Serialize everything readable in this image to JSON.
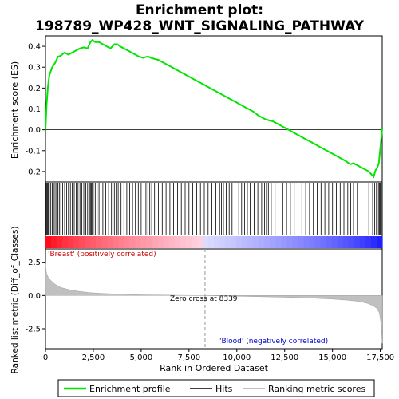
{
  "chart_data": {
    "type": "line",
    "title_line1": "Enrichment plot:",
    "title_line2": "198789_WP428_WNT_SIGNALING_PATHWAY",
    "top_panel": {
      "ylabel": "Enrichment score (ES)",
      "ylim": [
        -0.25,
        0.45
      ],
      "yticks": [
        -0.2,
        -0.1,
        0.0,
        0.1,
        0.2,
        0.3,
        0.4
      ],
      "ytick_labels": [
        "-0.2",
        "-0.1",
        "0.0",
        "0.1",
        "0.2",
        "0.3",
        "0.4"
      ],
      "line_color": "#00e600",
      "es_profile": {
        "x": [
          0,
          60,
          120,
          200,
          350,
          500,
          650,
          800,
          1000,
          1200,
          1400,
          1600,
          1800,
          2000,
          2200,
          2350,
          2450,
          2600,
          2800,
          3000,
          3200,
          3400,
          3600,
          3750,
          3900,
          4100,
          4300,
          4500,
          4700,
          4900,
          5100,
          5300,
          5400,
          5500,
          5700,
          5900,
          6100,
          6300,
          6500,
          6700,
          6900,
          7100,
          7300,
          7500,
          7700,
          7900,
          8100,
          8300,
          8500,
          8700,
          8900,
          9100,
          9300,
          9500,
          9700,
          9900,
          10100,
          10300,
          10500,
          10700,
          10900,
          11100,
          11300,
          11500,
          11700,
          11900,
          12100,
          12300,
          12500,
          12700,
          12900,
          13100,
          13300,
          13500,
          13700,
          13900,
          14100,
          14300,
          14500,
          14700,
          14900,
          15100,
          15300,
          15500,
          15700,
          15850,
          15950,
          16100,
          16300,
          16500,
          16700,
          16900,
          17050,
          17150,
          17250,
          17350,
          17420,
          17480,
          17550,
          17600
        ],
        "y": [
          0.0,
          0.12,
          0.2,
          0.26,
          0.3,
          0.32,
          0.35,
          0.355,
          0.37,
          0.36,
          0.37,
          0.38,
          0.39,
          0.395,
          0.39,
          0.42,
          0.43,
          0.42,
          0.42,
          0.41,
          0.4,
          0.39,
          0.41,
          0.41,
          0.4,
          0.39,
          0.38,
          0.37,
          0.36,
          0.35,
          0.345,
          0.35,
          0.35,
          0.345,
          0.34,
          0.335,
          0.325,
          0.315,
          0.305,
          0.295,
          0.285,
          0.275,
          0.265,
          0.255,
          0.245,
          0.235,
          0.225,
          0.215,
          0.205,
          0.195,
          0.185,
          0.175,
          0.165,
          0.155,
          0.145,
          0.135,
          0.125,
          0.115,
          0.105,
          0.095,
          0.085,
          0.07,
          0.06,
          0.05,
          0.045,
          0.04,
          0.03,
          0.02,
          0.01,
          0.0,
          -0.01,
          -0.02,
          -0.03,
          -0.04,
          -0.05,
          -0.06,
          -0.07,
          -0.08,
          -0.09,
          -0.1,
          -0.11,
          -0.12,
          -0.13,
          -0.14,
          -0.15,
          -0.16,
          -0.165,
          -0.16,
          -0.17,
          -0.18,
          -0.19,
          -0.2,
          -0.215,
          -0.225,
          -0.195,
          -0.18,
          -0.16,
          -0.11,
          -0.04,
          0.005
        ]
      }
    },
    "hits_panel": {
      "hit_positions": [
        20,
        60,
        100,
        150,
        200,
        280,
        350,
        420,
        500,
        580,
        650,
        720,
        800,
        900,
        1000,
        1100,
        1200,
        1300,
        1400,
        1500,
        1600,
        1700,
        1800,
        1900,
        2000,
        2100,
        2200,
        2300,
        2350,
        2400,
        2450,
        2500,
        2600,
        2700,
        2800,
        2900,
        3000,
        3150,
        3300,
        3450,
        3600,
        3700,
        3800,
        3950,
        4100,
        4250,
        4400,
        4550,
        4700,
        4850,
        5000,
        5150,
        5250,
        5350,
        5450,
        5550,
        5700,
        5900,
        6100,
        6300,
        6500,
        6700,
        6900,
        7100,
        7300,
        7500,
        7700,
        7900,
        8100,
        8300,
        8500,
        8700,
        8900,
        9100,
        9200,
        9300,
        9450,
        9600,
        9750,
        9900,
        10100,
        10250,
        10400,
        10550,
        10700,
        10900,
        11100,
        11300,
        11450,
        11550,
        11650,
        11800,
        12000,
        12200,
        12400,
        12600,
        12800,
        13000,
        13200,
        13400,
        13600,
        13800,
        14000,
        14200,
        14400,
        14600,
        14800,
        15000,
        15200,
        15400,
        15600,
        15800,
        15950,
        16100,
        16300,
        16500,
        16700,
        16900,
        17100,
        17200,
        17300,
        17400,
        17450,
        17500,
        17550
      ]
    },
    "metric_panel": {
      "ylabel": "Ranked list metric (Diff_of_Classes)",
      "ylim": [
        -4.0,
        3.5
      ],
      "yticks": [
        -2.5,
        0.0,
        2.5
      ],
      "ytick_labels": [
        "-2.5",
        "0.0",
        "2.5"
      ],
      "metric_curve": {
        "x": [
          0,
          50,
          150,
          300,
          500,
          800,
          1200,
          1700,
          2300,
          3000,
          4000,
          5000,
          6000,
          7000,
          8000,
          8339,
          9000,
          10000,
          11000,
          12000,
          13000,
          14000,
          15000,
          15800,
          16400,
          16800,
          17100,
          17300,
          17450,
          17550,
          17600
        ],
        "y": [
          2.4,
          1.7,
          1.35,
          1.1,
          0.85,
          0.6,
          0.45,
          0.32,
          0.22,
          0.15,
          0.09,
          0.05,
          0.03,
          0.015,
          0.005,
          0.0,
          -0.02,
          -0.05,
          -0.08,
          -0.11,
          -0.15,
          -0.2,
          -0.27,
          -0.35,
          -0.45,
          -0.58,
          -0.75,
          -0.95,
          -1.3,
          -2.2,
          -3.6
        ]
      },
      "zero_cross_label": "Zero cross at 8339",
      "zero_cross_x": 8339,
      "pos_label": "'Breast' (positively correlated)",
      "neg_label": "'Blood' (negatively correlated)",
      "pos_color": "#ff0000",
      "neg_color": "#0000ff"
    },
    "xlabel": "Rank in Ordered Dataset",
    "xlim": [
      0,
      17600
    ],
    "xticks": [
      0,
      2500,
      5000,
      7500,
      10000,
      12500,
      15000,
      17500
    ],
    "xtick_labels": [
      "0",
      "2,500",
      "5,000",
      "7,500",
      "10,000",
      "12,500",
      "15,000",
      "17,500"
    ],
    "legend": [
      {
        "label": "Enrichment profile",
        "color": "#00e600"
      },
      {
        "label": "Hits",
        "color": "#000000"
      },
      {
        "label": "Ranking metric scores",
        "color": "#c0c0c0"
      }
    ]
  }
}
